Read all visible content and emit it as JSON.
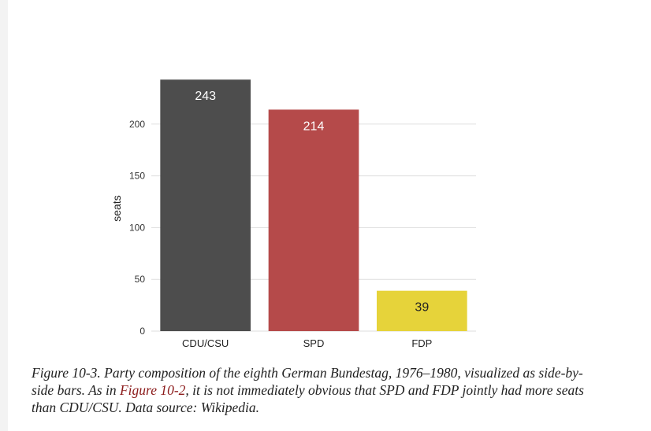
{
  "chart_data": {
    "type": "bar",
    "categories": [
      "CDU/CSU",
      "SPD",
      "FDP"
    ],
    "values": [
      243,
      214,
      39
    ],
    "data_labels": [
      "243",
      "214",
      "39"
    ],
    "colors": [
      "#4d4d4d",
      "#b54a4a",
      "#e6d33a"
    ],
    "label_colors": [
      "#ffffff",
      "#ffffff",
      "#222222"
    ],
    "ylabel": "seats",
    "xlabel": "",
    "title": "",
    "ylim": [
      0,
      250
    ],
    "yticks": [
      0,
      50,
      100,
      150,
      200
    ],
    "grid": true,
    "legend": "none"
  },
  "caption": {
    "part1": "Figure 10-3. Party composition of the eighth German Bundestag, 1976–1980, visualized as side-by-side bars. As in ",
    "link": "Figure 10-2",
    "part2": ", it is not immediately obvious that SPD and FDP jointly had more seats than CDU/CSU. Data source: Wikipedia."
  }
}
